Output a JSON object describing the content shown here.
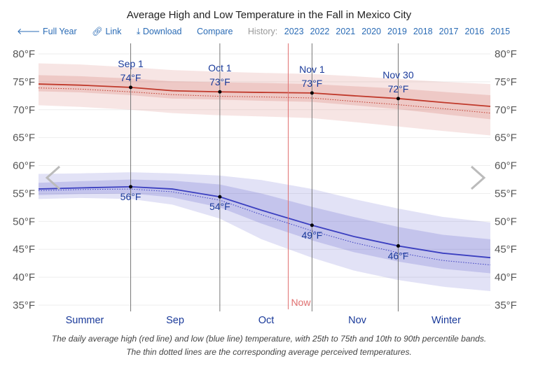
{
  "nav": {
    "full_year": "Full Year",
    "link": "Link",
    "download": "Download",
    "compare": "Compare",
    "history_label": "History:",
    "years": [
      "2023",
      "2022",
      "2021",
      "2020",
      "2019",
      "2018",
      "2017",
      "2016",
      "2015"
    ]
  },
  "caption": [
    "The daily average high (red line) and low (blue line) temperature, with 25th to 75th and 10th to 90th percentile bands.",
    "The thin dotted lines are the corresponding average perceived temperatures."
  ],
  "chart_data": {
    "type": "line",
    "title": "Average High and Low Temperature in the Fall in Mexico City",
    "ylim": [
      35,
      80
    ],
    "y_unit": "°F",
    "yticks": [
      "80°F",
      "75°F",
      "70°F",
      "65°F",
      "60°F",
      "55°F",
      "50°F",
      "45°F",
      "40°F",
      "35°F"
    ],
    "xlim": [
      "Aug 1",
      "Dec 31"
    ],
    "x_labels": [
      "Summer",
      "Sep",
      "Oct",
      "Nov",
      "Winter"
    ],
    "x": [
      "Aug 1",
      "Aug 15",
      "Sep 1",
      "Sep 15",
      "Oct 1",
      "Oct 15",
      "Nov 1",
      "Nov 15",
      "Nov 30",
      "Dec 15",
      "Dec 31"
    ],
    "now": {
      "label": "Now",
      "date": "Oct 24"
    },
    "colors": {
      "high": "#c0392b",
      "low": "#3b3fc0"
    },
    "series": [
      {
        "name": "high",
        "avg": [
          74.6,
          74.4,
          74.0,
          73.4,
          73.2,
          73.1,
          73.0,
          72.5,
          72.0,
          71.3,
          70.6
        ],
        "p25": [
          73.3,
          73.1,
          72.6,
          72.0,
          71.8,
          71.6,
          71.4,
          70.8,
          70.1,
          69.2,
          68.3
        ],
        "p75": [
          76.2,
          76.0,
          75.6,
          75.1,
          74.9,
          74.8,
          74.6,
          74.2,
          73.8,
          73.2,
          72.6
        ],
        "p10": [
          70.8,
          70.5,
          70.0,
          69.4,
          69.0,
          68.8,
          68.5,
          67.8,
          67.0,
          66.2,
          65.4
        ],
        "p90": [
          78.3,
          78.1,
          77.6,
          77.1,
          76.8,
          76.6,
          76.4,
          76.0,
          75.5,
          75.0,
          74.6
        ],
        "perceived": [
          73.9,
          73.7,
          73.2,
          72.7,
          72.4,
          72.3,
          72.1,
          71.5,
          70.9,
          70.2,
          69.4
        ]
      },
      {
        "name": "low",
        "avg": [
          55.8,
          56.0,
          56.2,
          55.8,
          54.4,
          52.0,
          49.3,
          47.3,
          45.6,
          44.3,
          43.5
        ],
        "p25": [
          54.7,
          54.9,
          55.0,
          54.3,
          52.5,
          49.6,
          46.6,
          44.5,
          42.8,
          41.5,
          40.7
        ],
        "p75": [
          56.9,
          57.2,
          57.5,
          57.3,
          56.6,
          55.0,
          52.6,
          50.8,
          49.0,
          47.6,
          46.8
        ],
        "p10": [
          54.0,
          54.2,
          54.0,
          53.0,
          50.5,
          46.8,
          43.5,
          41.2,
          39.5,
          38.3,
          37.5
        ],
        "p90": [
          58.5,
          58.6,
          58.8,
          58.6,
          58.2,
          57.4,
          55.8,
          54.0,
          52.3,
          50.8,
          49.8
        ],
        "perceived": [
          55.5,
          55.7,
          55.8,
          55.3,
          53.8,
          51.2,
          48.3,
          46.2,
          44.4,
          43.0,
          42.2
        ]
      }
    ],
    "annotations": [
      {
        "date": "Sep 1",
        "high": "74°F",
        "low": "56°F",
        "label": "Sep 1",
        "hv": 74.0,
        "lv": 56.2
      },
      {
        "date": "Oct 1",
        "high": "73°F",
        "low": "54°F",
        "label": "Oct 1",
        "hv": 73.2,
        "lv": 54.4
      },
      {
        "date": "Nov 1",
        "high": "73°F",
        "low": "49°F",
        "label": "Nov 1",
        "hv": 73.0,
        "lv": 49.3
      },
      {
        "date": "Nov 30",
        "high": "72°F",
        "low": "46°F",
        "label": "Nov 30",
        "hv": 72.0,
        "lv": 45.6
      }
    ]
  }
}
